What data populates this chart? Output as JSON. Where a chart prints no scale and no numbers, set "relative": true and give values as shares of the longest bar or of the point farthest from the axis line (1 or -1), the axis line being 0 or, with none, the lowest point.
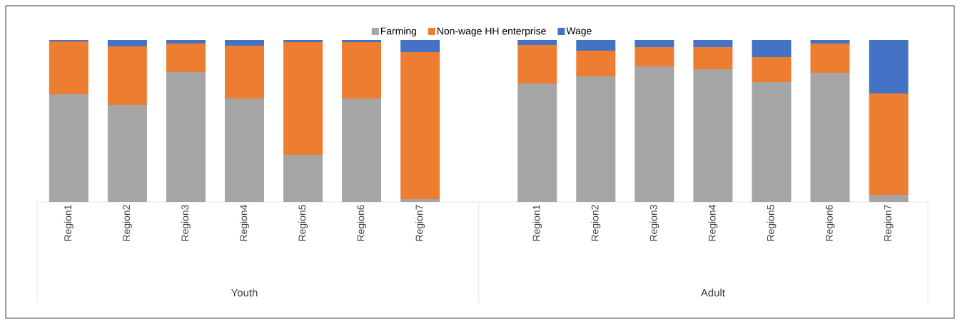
{
  "chart_data": {
    "type": "bar",
    "stacked": true,
    "relative": true,
    "legend": "top",
    "categories": [
      "Region1",
      "Region2",
      "Region3",
      "Region4",
      "Region5",
      "Region6",
      "Region7",
      null,
      "Region1",
      "Region2",
      "Region3",
      "Region4",
      "Region5",
      "Region6",
      "Region7"
    ],
    "series": [
      {
        "name": "Farming",
        "color": "#a5a5a5",
        "values": [
          0.665,
          0.599,
          0.802,
          0.639,
          0.291,
          0.639,
          0.018,
          null,
          0.731,
          0.775,
          0.837,
          0.819,
          0.74,
          0.797,
          0.044
        ]
      },
      {
        "name": "Non-wage HH enterprise",
        "color": "#ed7d31",
        "values": [
          0.326,
          0.361,
          0.176,
          0.326,
          0.696,
          0.348,
          0.907,
          null,
          0.238,
          0.159,
          0.119,
          0.137,
          0.154,
          0.181,
          0.626
        ]
      },
      {
        "name": "Wage",
        "color": "#4472c4",
        "values": [
          0.009,
          0.04,
          0.022,
          0.035,
          0.013,
          0.013,
          0.075,
          null,
          0.031,
          0.066,
          0.044,
          0.044,
          0.106,
          0.022,
          0.33
        ]
      }
    ],
    "annotations": [
      "Youth",
      "Adult"
    ]
  }
}
